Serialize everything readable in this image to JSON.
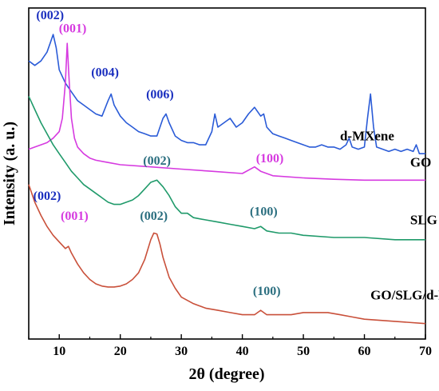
{
  "chart_data": {
    "type": "line",
    "xlabel": "2θ (degree)",
    "ylabel": "Intensity (a. u.)",
    "xlim": [
      5,
      70
    ],
    "xticks": [
      "10",
      "20",
      "30",
      "40",
      "50",
      "60",
      "70"
    ],
    "grid": false,
    "series": [
      {
        "name": "d-MXene",
        "color": "#2a5bd7",
        "label_x": 56,
        "label_y": 6.0,
        "x": [
          5,
          6,
          7,
          8,
          8.5,
          9,
          9.5,
          10,
          11,
          12,
          13,
          14,
          15,
          16,
          17,
          18,
          18.5,
          19,
          20,
          21,
          22,
          23,
          24,
          25,
          26,
          27,
          27.5,
          28,
          29,
          30,
          31,
          32,
          33,
          34,
          35,
          35.5,
          36,
          37,
          38,
          39,
          40,
          41,
          42,
          43,
          43.5,
          44,
          45,
          46,
          47,
          48,
          49,
          50,
          51,
          52,
          53,
          54,
          55,
          56,
          57,
          57.5,
          58,
          59,
          60,
          60.5,
          61,
          61.5,
          62,
          63,
          64,
          65,
          66,
          67,
          68,
          68.5,
          69,
          70
        ],
        "y": [
          7.8,
          7.7,
          7.8,
          8.0,
          8.2,
          8.4,
          8.1,
          7.6,
          7.3,
          7.1,
          6.9,
          6.8,
          6.7,
          6.6,
          6.55,
          6.9,
          7.05,
          6.8,
          6.55,
          6.4,
          6.3,
          6.2,
          6.15,
          6.1,
          6.1,
          6.5,
          6.6,
          6.4,
          6.1,
          6.0,
          5.95,
          5.95,
          5.9,
          5.9,
          6.2,
          6.6,
          6.3,
          6.4,
          6.5,
          6.3,
          6.4,
          6.6,
          6.75,
          6.55,
          6.6,
          6.3,
          6.15,
          6.1,
          6.05,
          6.0,
          5.95,
          5.9,
          5.85,
          5.85,
          5.9,
          5.85,
          5.85,
          5.8,
          5.9,
          6.05,
          5.85,
          5.8,
          5.85,
          6.5,
          7.05,
          6.3,
          5.85,
          5.8,
          5.75,
          5.8,
          5.75,
          5.8,
          5.75,
          5.9,
          5.7,
          5.7
        ]
      },
      {
        "name": "GO",
        "color": "#d63ae0",
        "label_x": 67.5,
        "label_y": 5.4,
        "x": [
          5,
          6,
          7,
          8,
          9,
          10,
          10.5,
          11,
          11.3,
          11.6,
          12,
          12.5,
          13,
          14,
          15,
          16,
          18,
          20,
          25,
          30,
          35,
          40,
          42,
          43,
          45,
          50,
          55,
          60,
          65,
          70
        ],
        "y": [
          5.8,
          5.85,
          5.9,
          5.95,
          6.05,
          6.2,
          6.5,
          7.3,
          8.2,
          7.4,
          6.5,
          6.05,
          5.85,
          5.7,
          5.6,
          5.55,
          5.5,
          5.45,
          5.4,
          5.35,
          5.3,
          5.25,
          5.4,
          5.3,
          5.2,
          5.15,
          5.12,
          5.1,
          5.1,
          5.1
        ]
      },
      {
        "name": "SLG",
        "color": "#1f9a6a",
        "label_x": 67.5,
        "label_y": 4.1,
        "x": [
          5,
          6,
          7,
          8,
          9,
          10,
          11,
          12,
          13,
          14,
          15,
          16,
          17,
          18,
          19,
          20,
          21,
          22,
          23,
          24,
          25,
          26,
          27,
          28,
          29,
          30,
          31,
          32,
          34,
          36,
          38,
          40,
          42,
          43,
          44,
          46,
          48,
          50,
          55,
          60,
          65,
          70
        ],
        "y": [
          7.0,
          6.7,
          6.4,
          6.15,
          5.9,
          5.7,
          5.5,
          5.3,
          5.15,
          5.0,
          4.9,
          4.8,
          4.7,
          4.6,
          4.55,
          4.55,
          4.6,
          4.65,
          4.75,
          4.9,
          5.05,
          5.1,
          4.95,
          4.75,
          4.5,
          4.35,
          4.35,
          4.25,
          4.2,
          4.15,
          4.1,
          4.05,
          4.0,
          4.05,
          3.95,
          3.9,
          3.9,
          3.85,
          3.8,
          3.8,
          3.75,
          3.75
        ]
      },
      {
        "name": "GO/SLG/d-MXene",
        "color": "#c9503a",
        "label_x": 61,
        "label_y": 2.4,
        "x": [
          5,
          6,
          7,
          8,
          9,
          10,
          11,
          11.5,
          12,
          13,
          14,
          15,
          16,
          17,
          18,
          19,
          20,
          21,
          22,
          23,
          24,
          25,
          25.5,
          26,
          26.5,
          27,
          28,
          29,
          30,
          32,
          34,
          36,
          38,
          40,
          42,
          43,
          44,
          45,
          48,
          50,
          52,
          54,
          56,
          58,
          60,
          65,
          70
        ],
        "y": [
          5.0,
          4.6,
          4.3,
          4.05,
          3.85,
          3.7,
          3.55,
          3.6,
          3.45,
          3.2,
          3.0,
          2.85,
          2.75,
          2.7,
          2.68,
          2.68,
          2.7,
          2.75,
          2.85,
          3.0,
          3.3,
          3.75,
          3.9,
          3.88,
          3.65,
          3.35,
          2.9,
          2.65,
          2.45,
          2.3,
          2.2,
          2.15,
          2.1,
          2.05,
          2.05,
          2.15,
          2.05,
          2.05,
          2.05,
          2.1,
          2.1,
          2.1,
          2.05,
          2.0,
          1.95,
          1.9,
          1.85
        ]
      }
    ],
    "annotations": [
      {
        "text": "(002)",
        "x": 8.5,
        "y": 8.75,
        "color": "#1a2fbf"
      },
      {
        "text": "(001)",
        "x": 12.2,
        "y": 8.45,
        "color": "#d63ae0"
      },
      {
        "text": "(004)",
        "x": 17.5,
        "y": 7.45,
        "color": "#1a2fbf"
      },
      {
        "text": "(006)",
        "x": 26.5,
        "y": 6.95,
        "color": "#1a2fbf"
      },
      {
        "text": "(100)",
        "x": 44.5,
        "y": 5.5,
        "color": "#d63ae0"
      },
      {
        "text": "(002)",
        "x": 26.0,
        "y": 5.45,
        "color": "#2a6e7f"
      },
      {
        "text": "(100)",
        "x": 43.5,
        "y": 4.3,
        "color": "#2a6e7f"
      },
      {
        "text": "(002)",
        "x": 8.0,
        "y": 4.65,
        "color": "#1a2fbf"
      },
      {
        "text": "(001)",
        "x": 12.5,
        "y": 4.2,
        "color": "#d63ae0"
      },
      {
        "text": "(002)",
        "x": 25.5,
        "y": 4.2,
        "color": "#2a6e7f"
      },
      {
        "text": "(100)",
        "x": 44.0,
        "y": 2.5,
        "color": "#2a6e7f"
      }
    ]
  }
}
